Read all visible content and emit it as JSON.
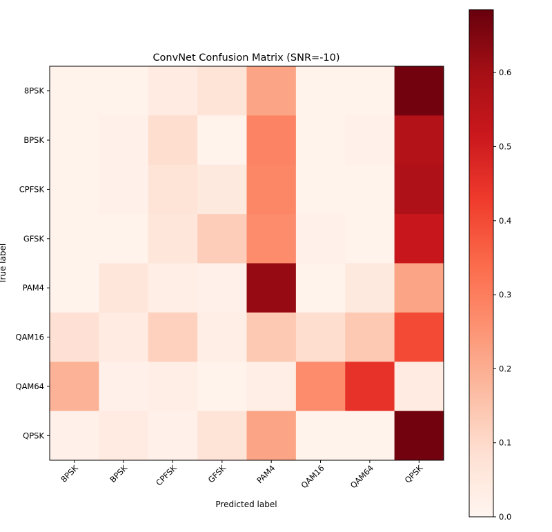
{
  "chart_data": {
    "type": "heatmap",
    "title": "ConvNet Confusion Matrix (SNR=-10)",
    "xlabel": "Predicted label",
    "ylabel": "True label",
    "x_categories": [
      "8PSK",
      "BPSK",
      "CPFSK",
      "GFSK",
      "PAM4",
      "QAM16",
      "QAM64",
      "QPSK"
    ],
    "y_categories": [
      "8PSK",
      "BPSK",
      "CPFSK",
      "GFSK",
      "PAM4",
      "QAM16",
      "QAM64",
      "QPSK"
    ],
    "values": [
      [
        0.01,
        0.01,
        0.04,
        0.07,
        0.22,
        0.01,
        0.01,
        0.67
      ],
      [
        0.01,
        0.02,
        0.09,
        0.01,
        0.29,
        0.01,
        0.02,
        0.57
      ],
      [
        0.01,
        0.02,
        0.07,
        0.05,
        0.28,
        0.01,
        0.01,
        0.58
      ],
      [
        0.01,
        0.01,
        0.06,
        0.13,
        0.27,
        0.02,
        0.01,
        0.52
      ],
      [
        0.01,
        0.06,
        0.03,
        0.02,
        0.62,
        0.01,
        0.05,
        0.22
      ],
      [
        0.08,
        0.04,
        0.12,
        0.03,
        0.14,
        0.09,
        0.14,
        0.4
      ],
      [
        0.19,
        0.02,
        0.03,
        0.01,
        0.03,
        0.27,
        0.45,
        0.04
      ],
      [
        0.02,
        0.04,
        0.02,
        0.07,
        0.22,
        0.01,
        0.01,
        0.67
      ]
    ],
    "colormap": "Reds",
    "colorbar": {
      "min": 0.0,
      "max": 0.685,
      "ticks": [
        0.0,
        0.1,
        0.2,
        0.3,
        0.4,
        0.5,
        0.6
      ],
      "tick_labels": [
        "0.0",
        "0.1",
        "0.2",
        "0.3",
        "0.4",
        "0.5",
        "0.6"
      ]
    },
    "x_tick_rotation": 45,
    "grid": false
  }
}
